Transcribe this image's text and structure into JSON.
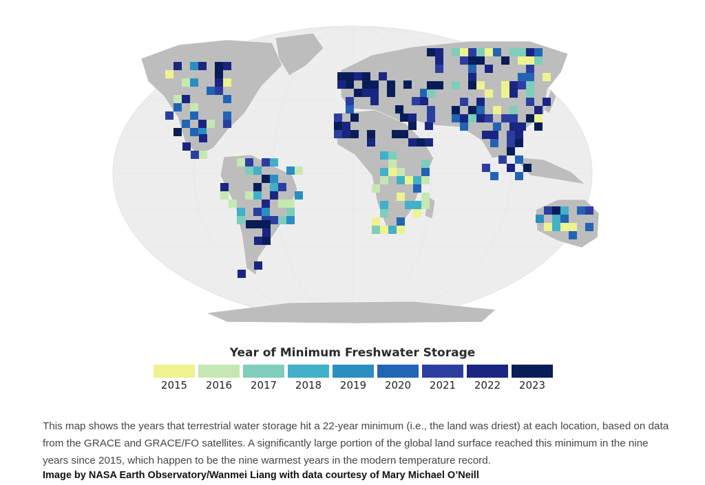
{
  "map": {
    "legend_title": "Year of Minimum Freshwater Storage",
    "legend": [
      {
        "year": "2015",
        "color": "#eef390"
      },
      {
        "year": "2016",
        "color": "#c5e8b2"
      },
      {
        "year": "2017",
        "color": "#7fcdbb"
      },
      {
        "year": "2018",
        "color": "#41b0c8"
      },
      {
        "year": "2019",
        "color": "#2a8ec0"
      },
      {
        "year": "2020",
        "color": "#2264b4"
      },
      {
        "year": "2021",
        "color": "#2b3ea0"
      },
      {
        "year": "2022",
        "color": "#1a2581"
      },
      {
        "year": "2023",
        "color": "#081d58"
      }
    ],
    "ocean_color": "#ededed",
    "land_color": "#bdbdbd"
  },
  "caption": "This map shows the years that terrestrial water storage hit a 22-year minimum (i.e., the land was driest) at each location, based on data from the GRACE and GRACE/FO satellites. A significantly large portion of the global land surface reached this minimum in the nine years since 2015, which happen to be the nine warmest years in the modern temperature record.",
  "credit": "Image by NASA Earth Observatory/Wanmei Liang with data courtesy of Mary Michael O’Neill"
}
